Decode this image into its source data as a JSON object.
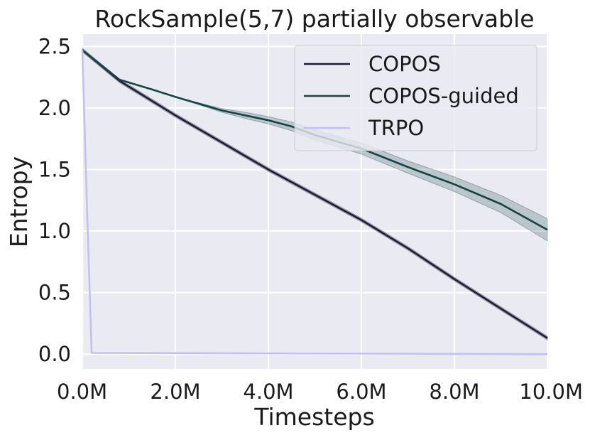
{
  "chart_data": {
    "type": "line",
    "title": "RockSample(5,7) partially observable",
    "xlabel": "Timesteps",
    "ylabel": "Entropy",
    "xlim": [
      0,
      10000000
    ],
    "ylim": [
      -0.12,
      2.6
    ],
    "xticks": [
      0,
      2000000,
      4000000,
      6000000,
      8000000,
      10000000
    ],
    "xtick_labels": [
      "0.0M",
      "2.0M",
      "4.0M",
      "6.0M",
      "8.0M",
      "10.0M"
    ],
    "yticks": [
      0.0,
      0.5,
      1.0,
      1.5,
      2.0,
      2.5
    ],
    "ytick_labels": [
      "0.0",
      "0.5",
      "1.0",
      "1.5",
      "2.0",
      "2.5"
    ],
    "grid": true,
    "legend_position": "top-right",
    "series": [
      {
        "name": "COPOS",
        "color": "#1e1a33",
        "x": [
          0,
          800000,
          2000000,
          4000000,
          6000000,
          7000000,
          8000000,
          9000000,
          10000000
        ],
        "y": [
          2.47,
          2.22,
          1.94,
          1.5,
          1.09,
          0.86,
          0.61,
          0.37,
          0.13
        ],
        "band": 0.015
      },
      {
        "name": "COPOS-guided",
        "color": "#164444",
        "x": [
          0,
          800000,
          1500000,
          2000000,
          3000000,
          3500000,
          4000000,
          4500000,
          5000000,
          6000000,
          7000000,
          8000000,
          9000000,
          10000000
        ],
        "y": [
          2.47,
          2.23,
          2.15,
          2.09,
          1.98,
          1.94,
          1.9,
          1.85,
          1.78,
          1.67,
          1.52,
          1.38,
          1.22,
          1.01
        ],
        "band_lower": [
          0,
          0,
          0,
          0,
          0.015,
          0.025,
          0.03,
          0.035,
          0.04,
          0.045,
          0.05,
          0.06,
          0.07,
          0.09
        ],
        "band_upper": [
          0,
          0,
          0,
          0,
          0.015,
          0.025,
          0.03,
          0.035,
          0.04,
          0.045,
          0.05,
          0.06,
          0.07,
          0.09
        ]
      },
      {
        "name": "TRPO",
        "color": "#c2c0f0",
        "x": [
          0,
          100000,
          200000,
          10000000
        ],
        "y": [
          2.47,
          1.2,
          0.01,
          0.0
        ]
      }
    ]
  }
}
